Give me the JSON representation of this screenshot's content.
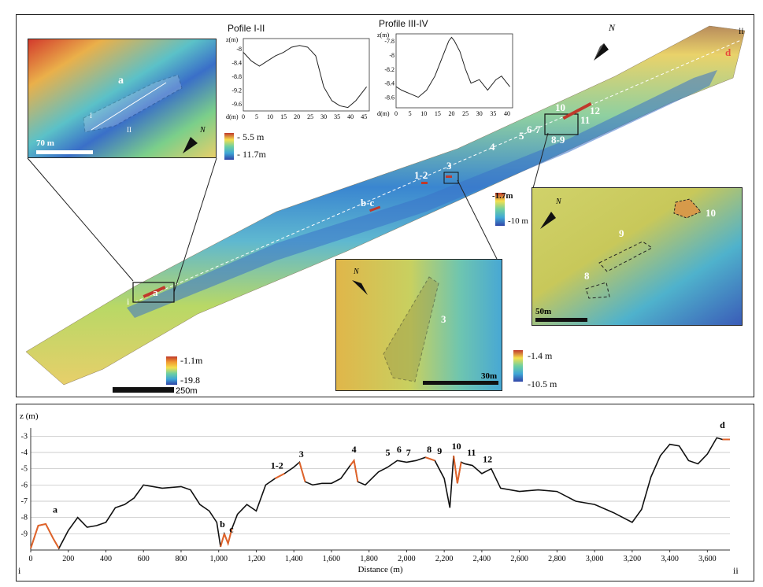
{
  "map": {
    "north_label": "N",
    "scale_main": "250m",
    "legend_main": {
      "top": "-1.1m",
      "bottom": "-19.8"
    },
    "endpoint_i": "i",
    "endpoint_ii": "ii",
    "point_labels": [
      "a",
      "b-c",
      "1-2",
      "3",
      "4",
      "5",
      "6-7",
      "8-9",
      "10",
      "11",
      "12",
      "d"
    ]
  },
  "inset_a": {
    "scale": "70 m",
    "legend": {
      "top": "- 5.5 m",
      "bottom": "- 11.7m"
    },
    "label_a": "a",
    "label_I": "I",
    "label_II": "II",
    "north_label": "N"
  },
  "inset_3": {
    "scale": "30m",
    "legend": {
      "top": "-1.4 m",
      "bottom": "-10.5 m"
    },
    "label": "3",
    "north_label": "N"
  },
  "inset_10": {
    "scale": "50m",
    "legend": {
      "top": "-1.7m",
      "bottom": "-10 m"
    },
    "labels": [
      "8",
      "9",
      "10"
    ],
    "north_label": "N"
  },
  "profile_1": {
    "title": "Pofile I-II",
    "ylabel": "z(m)",
    "xlabel": "d(m)",
    "yticks": [
      "-8",
      "-8.4",
      "-8.8",
      "-9.2",
      "-9.6"
    ],
    "xticks": [
      "0",
      "5",
      "10",
      "15",
      "20",
      "25",
      "30",
      "35",
      "40",
      "45"
    ]
  },
  "profile_2": {
    "title": "Profile III-IV",
    "ylabel": "z(m)",
    "xlabel": "d(m)",
    "yticks": [
      "-7.8",
      "-8",
      "-8.2",
      "-8.4",
      "-8.6"
    ],
    "xticks": [
      "0",
      "5",
      "10",
      "15",
      "20",
      "25",
      "30",
      "35",
      "40"
    ]
  },
  "chart_data": [
    {
      "type": "line",
      "title": "Pofile I-II",
      "xlabel": "d(m)",
      "ylabel": "z(m)",
      "xlim": [
        0,
        47
      ],
      "ylim": [
        -9.8,
        -7.7
      ],
      "x": [
        0,
        3,
        6,
        9,
        12,
        15,
        18,
        21,
        24,
        27,
        30,
        33,
        36,
        39,
        42,
        45,
        46
      ],
      "y": [
        -8.1,
        -8.35,
        -8.5,
        -8.35,
        -8.2,
        -8.1,
        -7.95,
        -7.9,
        -7.95,
        -8.2,
        -9.1,
        -9.5,
        -9.65,
        -9.7,
        -9.5,
        -9.2,
        -9.1
      ]
    },
    {
      "type": "line",
      "title": "Profile III-IV",
      "xlabel": "d(m)",
      "ylabel": "z(m)",
      "xlim": [
        0,
        42
      ],
      "ylim": [
        -8.75,
        -7.7
      ],
      "x": [
        0,
        2,
        5,
        8,
        11,
        14,
        17,
        19,
        20,
        21,
        23,
        25,
        27,
        30,
        33,
        36,
        38,
        40,
        41
      ],
      "y": [
        -8.45,
        -8.5,
        -8.55,
        -8.6,
        -8.5,
        -8.3,
        -8.0,
        -7.8,
        -7.75,
        -7.8,
        -7.95,
        -8.2,
        -8.4,
        -8.35,
        -8.5,
        -8.35,
        -8.3,
        -8.4,
        -8.45
      ]
    },
    {
      "type": "line",
      "title": "",
      "xlabel": "Distance (m)",
      "ylabel": "z (m)",
      "start_label": "i",
      "end_label": "ii",
      "xlim": [
        0,
        3720
      ],
      "ylim": [
        -10,
        -2.5
      ],
      "xticks": [
        0,
        200,
        400,
        600,
        800,
        1000,
        1200,
        1400,
        1600,
        1800,
        2000,
        2200,
        2400,
        2600,
        2800,
        3000,
        3200,
        3400,
        3600
      ],
      "yticks": [
        -3,
        -4,
        -5,
        -6,
        -7,
        -8,
        -9
      ],
      "x": [
        0,
        40,
        80,
        120,
        150,
        200,
        250,
        300,
        350,
        400,
        450,
        500,
        550,
        600,
        700,
        800,
        850,
        900,
        950,
        990,
        1010,
        1030,
        1050,
        1070,
        1100,
        1150,
        1200,
        1250,
        1300,
        1350,
        1400,
        1430,
        1460,
        1500,
        1550,
        1600,
        1650,
        1700,
        1720,
        1740,
        1780,
        1850,
        1900,
        1950,
        2000,
        2050,
        2100,
        2150,
        2200,
        2230,
        2250,
        2270,
        2290,
        2310,
        2350,
        2400,
        2450,
        2500,
        2600,
        2700,
        2800,
        2900,
        3000,
        3100,
        3200,
        3250,
        3300,
        3350,
        3400,
        3450,
        3500,
        3550,
        3600,
        3650,
        3680,
        3700,
        3720
      ],
      "y": [
        -9.9,
        -8.5,
        -8.4,
        -9.3,
        -9.9,
        -8.8,
        -8.0,
        -8.6,
        -8.5,
        -8.3,
        -7.4,
        -7.2,
        -6.8,
        -6.0,
        -6.2,
        -6.1,
        -6.3,
        -7.2,
        -7.6,
        -8.3,
        -9.8,
        -9.0,
        -9.6,
        -8.7,
        -7.8,
        -7.2,
        -7.6,
        -6.0,
        -5.6,
        -5.3,
        -4.9,
        -4.6,
        -5.8,
        -6.0,
        -5.9,
        -5.9,
        -5.6,
        -4.8,
        -4.5,
        -5.8,
        -6.0,
        -5.2,
        -4.9,
        -4.5,
        -4.6,
        -4.5,
        -4.3,
        -4.5,
        -5.6,
        -7.4,
        -4.2,
        -5.9,
        -4.6,
        -4.7,
        -4.8,
        -5.3,
        -5.0,
        -6.2,
        -6.4,
        -6.3,
        -6.4,
        -7.0,
        -7.2,
        -7.7,
        -8.3,
        -7.5,
        -5.5,
        -4.2,
        -3.5,
        -3.6,
        -4.5,
        -4.7,
        -4.1,
        -3.1,
        -3.2,
        -3.2,
        -3.2
      ],
      "highlighted_segments": [
        {
          "label": "a",
          "from": 0,
          "to": 150
        },
        {
          "label": "b",
          "from": 1000,
          "to": 1030
        },
        {
          "label": "c",
          "from": 1030,
          "to": 1070
        },
        {
          "label": "1-2",
          "from": 1300,
          "to": 1360
        },
        {
          "label": "3",
          "from": 1410,
          "to": 1460
        },
        {
          "label": "4",
          "from": 1700,
          "to": 1745
        },
        {
          "label": "5",
          "from": 1900,
          "to": 1940
        },
        {
          "label": "6",
          "from": 1945,
          "to": 1990
        },
        {
          "label": "7",
          "from": 1995,
          "to": 2040
        },
        {
          "label": "8",
          "from": 2100,
          "to": 2150
        },
        {
          "label": "9",
          "from": 2160,
          "to": 2200
        },
        {
          "label": "10",
          "from": 2250,
          "to": 2290
        },
        {
          "label": "11",
          "from": 2320,
          "to": 2370
        },
        {
          "label": "12",
          "from": 2410,
          "to": 2460
        },
        {
          "label": "d",
          "from": 3660,
          "to": 3720
        }
      ],
      "segment_labels": [
        {
          "text": "a",
          "x": 130,
          "y": -7.7
        },
        {
          "text": "b",
          "x": 1020,
          "y": -8.6
        },
        {
          "text": "c",
          "x": 1068,
          "y": -8.9
        },
        {
          "text": "1-2",
          "x": 1310,
          "y": -5.0
        },
        {
          "text": "3",
          "x": 1440,
          "y": -4.3
        },
        {
          "text": "4",
          "x": 1720,
          "y": -4.0
        },
        {
          "text": "5",
          "x": 1900,
          "y": -4.2
        },
        {
          "text": "6",
          "x": 1960,
          "y": -4.0
        },
        {
          "text": "7",
          "x": 2010,
          "y": -4.2
        },
        {
          "text": "8",
          "x": 2120,
          "y": -4.0
        },
        {
          "text": "9",
          "x": 2175,
          "y": -4.1
        },
        {
          "text": "10",
          "x": 2265,
          "y": -3.8
        },
        {
          "text": "11",
          "x": 2345,
          "y": -4.2
        },
        {
          "text": "12",
          "x": 2430,
          "y": -4.6
        },
        {
          "text": "d",
          "x": 3680,
          "y": -2.5
        }
      ]
    }
  ]
}
